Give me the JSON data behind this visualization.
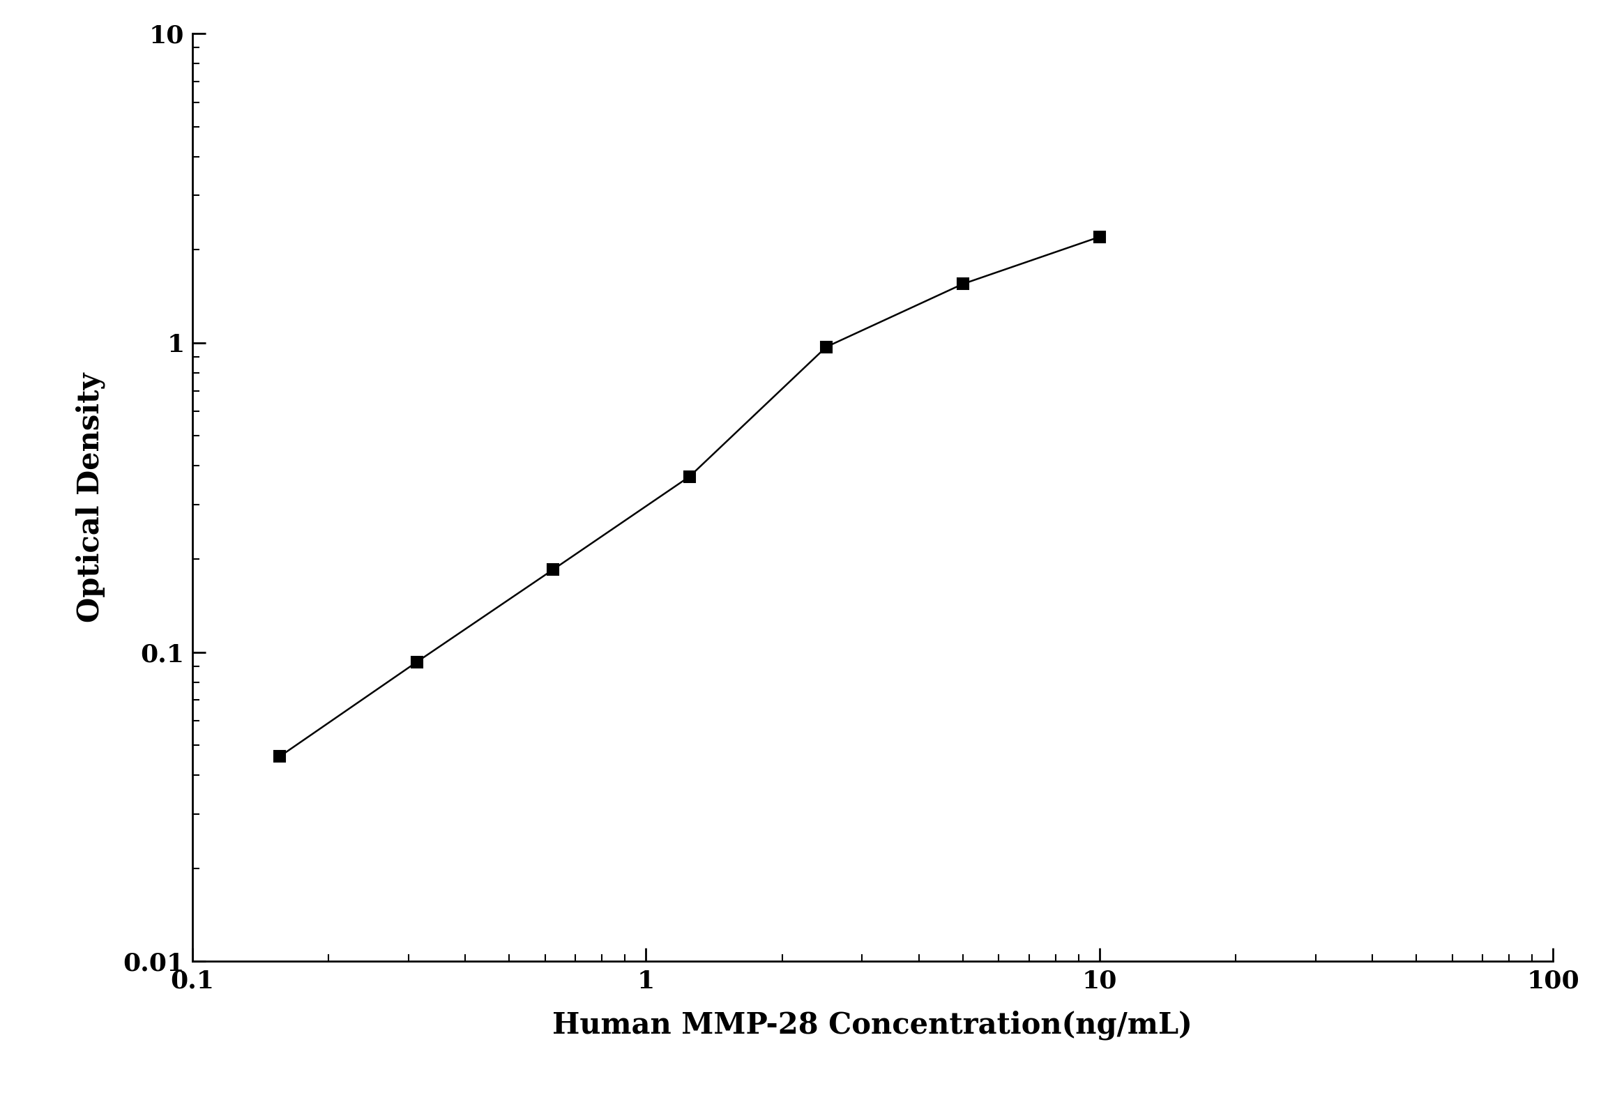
{
  "x": [
    0.156,
    0.313,
    0.625,
    1.25,
    2.5,
    5.0,
    10.0
  ],
  "y": [
    0.046,
    0.093,
    0.185,
    0.37,
    0.97,
    1.55,
    2.2
  ],
  "xlim": [
    0.1,
    100
  ],
  "ylim": [
    0.01,
    10
  ],
  "xlabel": "Human MMP-28 Concentration(ng/mL)",
  "ylabel": "Optical Density",
  "line_color": "#000000",
  "marker": "s",
  "marker_size": 12,
  "marker_facecolor": "#000000",
  "marker_edgecolor": "#000000",
  "line_width": 1.8,
  "xlabel_fontsize": 30,
  "ylabel_fontsize": 30,
  "tick_fontsize": 26,
  "background_color": "#ffffff",
  "axis_color": "#000000",
  "font_family": "serif",
  "font_weight": "bold",
  "x_tick_labels": [
    "0.1",
    "1",
    "10",
    "100"
  ],
  "x_tick_values": [
    0.1,
    1,
    10,
    100
  ],
  "y_tick_labels": [
    "0.01",
    "0.1",
    "1",
    "10"
  ],
  "y_tick_values": [
    0.01,
    0.1,
    1,
    10
  ]
}
